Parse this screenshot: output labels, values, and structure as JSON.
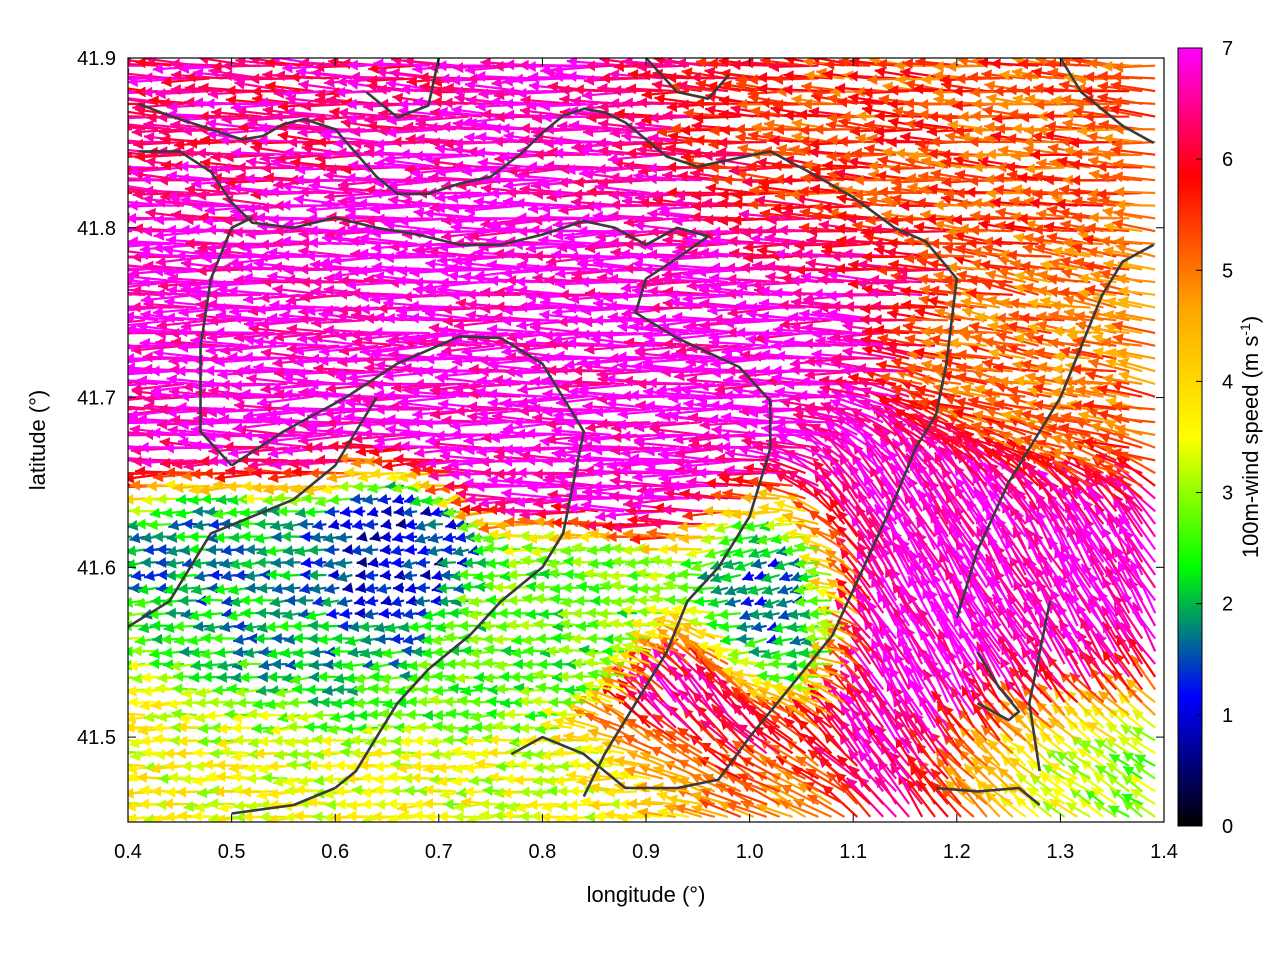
{
  "chart_data": {
    "type": "vector-field",
    "xlabel": "longitude (°)",
    "ylabel": "latitude (°)",
    "colorbar_label_main": "100m-wind speed (m s",
    "colorbar_label_sup": "-1",
    "colorbar_label_close": ")",
    "xlim": [
      0.4,
      1.4
    ],
    "ylim": [
      41.45,
      41.9
    ],
    "x_ticks": [
      "0.4",
      "0.5",
      "0.6",
      "0.7",
      "0.8",
      "0.9",
      "1.0",
      "1.1",
      "1.2",
      "1.3",
      "1.4"
    ],
    "x_tick_values": [
      0.4,
      0.5,
      0.6,
      0.7,
      0.8,
      0.9,
      1.0,
      1.1,
      1.2,
      1.3,
      1.4
    ],
    "y_ticks": [
      "41.5",
      "41.6",
      "41.7",
      "41.8",
      "41.9"
    ],
    "y_tick_values": [
      41.5,
      41.6,
      41.7,
      41.8,
      41.9
    ],
    "colorbar_ticks": [
      "0",
      "1",
      "2",
      "3",
      "4",
      "5",
      "6",
      "7"
    ],
    "colorbar_tick_values": [
      0,
      1,
      2,
      3,
      4,
      5,
      6,
      7
    ],
    "color_range": [
      0,
      7
    ],
    "colormap": [
      "#000000",
      "#0000ff",
      "#00ff00",
      "#ffff00",
      "#ffa500",
      "#ff0000",
      "#ff00ff"
    ],
    "grid": true,
    "legend": "colorbar right",
    "regions": [
      {
        "center": [
          0.84,
          41.77
        ],
        "radius": [
          0.26,
          0.09
        ],
        "speed": 7.0,
        "direction": 180
      },
      {
        "center": [
          0.55,
          41.87
        ],
        "radius": [
          0.16,
          0.05
        ],
        "speed": 6.5,
        "direction": 178
      },
      {
        "center": [
          1.12,
          41.84
        ],
        "radius": [
          0.18,
          0.05
        ],
        "speed": 5.3,
        "direction": 176
      },
      {
        "center": [
          1.29,
          41.72
        ],
        "radius": [
          0.1,
          0.06
        ],
        "speed": 5.0,
        "direction": 170
      },
      {
        "center": [
          1.22,
          41.55
        ],
        "radius": [
          0.13,
          0.1
        ],
        "speed": 7.0,
        "direction": 120
      },
      {
        "center": [
          0.98,
          41.5
        ],
        "radius": [
          0.09,
          0.05
        ],
        "speed": 6.8,
        "direction": 125
      },
      {
        "center": [
          0.53,
          41.56
        ],
        "radius": [
          0.08,
          0.05
        ],
        "speed": 1.8,
        "direction": 185
      },
      {
        "center": [
          0.8,
          41.56
        ],
        "radius": [
          0.12,
          0.04
        ],
        "speed": 2.6,
        "direction": 180
      },
      {
        "center": [
          0.67,
          41.6
        ],
        "radius": [
          0.06,
          0.04
        ],
        "speed": 1.0,
        "direction": 190
      },
      {
        "center": [
          1.04,
          41.56
        ],
        "radius": [
          0.06,
          0.05
        ],
        "speed": 1.2,
        "direction": 200
      },
      {
        "center": [
          0.48,
          41.5
        ],
        "radius": [
          0.1,
          0.05
        ],
        "speed": 3.5,
        "direction": 182
      },
      {
        "center": [
          0.9,
          41.47
        ],
        "radius": [
          0.15,
          0.03
        ],
        "speed": 3.4,
        "direction": 182
      },
      {
        "center": [
          1.3,
          41.48
        ],
        "radius": [
          0.1,
          0.04
        ],
        "speed": 2.5,
        "direction": 150
      }
    ],
    "contours": [
      [
        [
          0.41,
          41.873
        ],
        [
          0.44,
          41.866
        ],
        [
          0.47,
          41.86
        ],
        [
          0.49,
          41.856
        ],
        [
          0.51,
          41.852
        ],
        [
          0.53,
          41.854
        ],
        [
          0.55,
          41.861
        ],
        [
          0.57,
          41.864
        ],
        [
          0.6,
          41.858
        ],
        [
          0.62,
          41.844
        ],
        [
          0.64,
          41.83
        ],
        [
          0.66,
          41.82
        ],
        [
          0.69,
          41.82
        ],
        [
          0.72,
          41.826
        ],
        [
          0.75,
          41.83
        ],
        [
          0.78,
          41.844
        ],
        [
          0.8,
          41.856
        ],
        [
          0.82,
          41.866
        ],
        [
          0.84,
          41.87
        ],
        [
          0.86,
          41.868
        ],
        [
          0.88,
          41.862
        ],
        [
          0.9,
          41.852
        ],
        [
          0.92,
          41.842
        ],
        [
          0.95,
          41.836
        ],
        [
          0.98,
          41.84
        ],
        [
          1.02,
          41.845
        ],
        [
          1.06,
          41.832
        ],
        [
          1.1,
          41.818
        ],
        [
          1.14,
          41.8
        ],
        [
          1.17,
          41.792
        ],
        [
          1.2,
          41.77
        ],
        [
          1.19,
          41.72
        ],
        [
          1.18,
          41.69
        ],
        [
          1.16,
          41.67
        ],
        [
          1.14,
          41.64
        ],
        [
          1.11,
          41.6
        ],
        [
          1.08,
          41.56
        ],
        [
          1.04,
          41.53
        ],
        [
          1.0,
          41.5
        ],
        [
          0.97,
          41.475
        ],
        [
          0.93,
          41.47
        ],
        [
          0.88,
          41.47
        ],
        [
          0.84,
          41.49
        ],
        [
          0.8,
          41.5
        ],
        [
          0.77,
          41.49
        ]
      ],
      [
        [
          0.41,
          41.845
        ],
        [
          0.45,
          41.845
        ],
        [
          0.48,
          41.833
        ],
        [
          0.5,
          41.815
        ],
        [
          0.52,
          41.803
        ],
        [
          0.56,
          41.8
        ],
        [
          0.6,
          41.806
        ],
        [
          0.64,
          41.8
        ],
        [
          0.68,
          41.796
        ],
        [
          0.72,
          41.79
        ],
        [
          0.76,
          41.79
        ],
        [
          0.8,
          41.796
        ],
        [
          0.84,
          41.804
        ],
        [
          0.87,
          41.8
        ],
        [
          0.9,
          41.79
        ],
        [
          0.93,
          41.8
        ],
        [
          0.96,
          41.795
        ],
        [
          0.93,
          41.782
        ],
        [
          0.9,
          41.77
        ],
        [
          0.89,
          41.75
        ],
        [
          0.93,
          41.735
        ],
        [
          0.99,
          41.718
        ],
        [
          1.02,
          41.698
        ],
        [
          1.02,
          41.67
        ],
        [
          1.0,
          41.63
        ],
        [
          0.97,
          41.6
        ],
        [
          0.94,
          41.58
        ],
        [
          0.92,
          41.55
        ],
        [
          0.89,
          41.52
        ],
        [
          0.86,
          41.49
        ],
        [
          0.84,
          41.465
        ]
      ],
      [
        [
          0.5,
          41.66
        ],
        [
          0.55,
          41.68
        ],
        [
          0.61,
          41.7
        ],
        [
          0.66,
          41.72
        ],
        [
          0.72,
          41.736
        ],
        [
          0.76,
          41.735
        ],
        [
          0.8,
          41.72
        ],
        [
          0.84,
          41.68
        ],
        [
          0.82,
          41.62
        ],
        [
          0.8,
          41.6
        ],
        [
          0.76,
          41.58
        ],
        [
          0.73,
          41.56
        ],
        [
          0.69,
          41.54
        ],
        [
          0.66,
          41.52
        ],
        [
          0.64,
          41.5
        ],
        [
          0.62,
          41.48
        ],
        [
          0.6,
          41.47
        ]
      ],
      [
        [
          0.5,
          41.66
        ],
        [
          0.47,
          41.68
        ],
        [
          0.47,
          41.73
        ],
        [
          0.48,
          41.77
        ],
        [
          0.5,
          41.8
        ],
        [
          0.52,
          41.806
        ]
      ],
      [
        [
          0.4,
          41.565
        ],
        [
          0.44,
          41.58
        ],
        [
          0.48,
          41.62
        ],
        [
          0.52,
          41.63
        ],
        [
          0.56,
          41.64
        ],
        [
          0.6,
          41.66
        ],
        [
          0.62,
          41.68
        ],
        [
          0.64,
          41.7
        ]
      ],
      [
        [
          0.6,
          41.47
        ],
        [
          0.56,
          41.46
        ],
        [
          0.5,
          41.455
        ]
      ],
      [
        [
          1.2,
          41.57
        ],
        [
          1.22,
          41.61
        ],
        [
          1.25,
          41.65
        ],
        [
          1.28,
          41.68
        ],
        [
          1.3,
          41.7
        ],
        [
          1.32,
          41.73
        ],
        [
          1.34,
          41.76
        ],
        [
          1.36,
          41.78
        ],
        [
          1.39,
          41.79
        ]
      ],
      [
        [
          1.28,
          41.48
        ],
        [
          1.27,
          41.52
        ],
        [
          1.28,
          41.55
        ],
        [
          1.29,
          41.58
        ]
      ],
      [
        [
          1.18,
          41.47
        ],
        [
          1.22,
          41.468
        ],
        [
          1.26,
          41.47
        ],
        [
          1.28,
          41.46
        ]
      ],
      [
        [
          1.3,
          41.9
        ],
        [
          1.32,
          41.88
        ],
        [
          1.36,
          41.86
        ],
        [
          1.39,
          41.85
        ]
      ],
      [
        [
          0.63,
          41.88
        ],
        [
          0.66,
          41.865
        ],
        [
          0.69,
          41.872
        ],
        [
          0.7,
          41.9
        ]
      ],
      [
        [
          0.9,
          41.9
        ],
        [
          0.93,
          41.88
        ],
        [
          0.96,
          41.876
        ],
        [
          0.98,
          41.89
        ]
      ],
      [
        [
          1.22,
          41.55
        ],
        [
          1.24,
          41.53
        ],
        [
          1.26,
          41.515
        ],
        [
          1.25,
          41.51
        ],
        [
          1.22,
          41.52
        ]
      ]
    ]
  }
}
